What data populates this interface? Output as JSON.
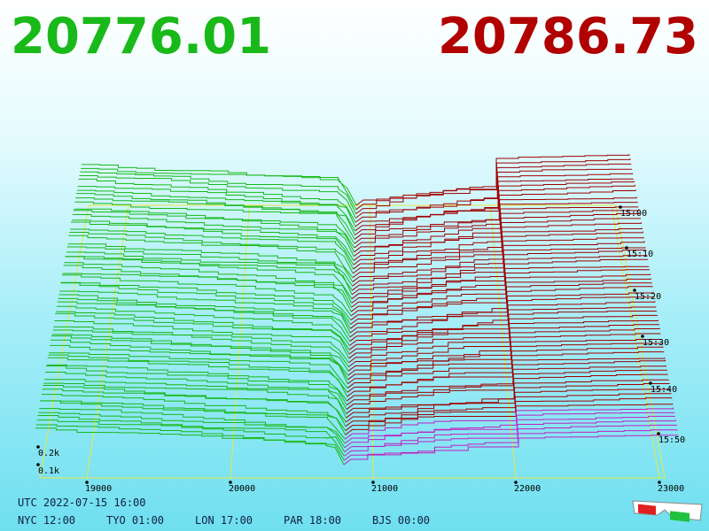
{
  "header": {
    "bid": "20776.01",
    "ask": "20786.73"
  },
  "price_axis": {
    "labels": [
      "19000",
      "20000",
      "21000",
      "22000",
      "23000"
    ]
  },
  "depth_axis": {
    "labels": [
      "0.2k",
      "0.1k"
    ]
  },
  "time_axis": {
    "labels": [
      "15:00",
      "15:10",
      "15:20",
      "15:30",
      "15:40",
      "15:50"
    ]
  },
  "footer": {
    "utc": "UTC 2022-07-15 16:00",
    "clocks": [
      "NYC 12:00",
      "TYO 01:00",
      "LON 17:00",
      "PAR 18:00",
      "BJS 00:00"
    ]
  }
}
